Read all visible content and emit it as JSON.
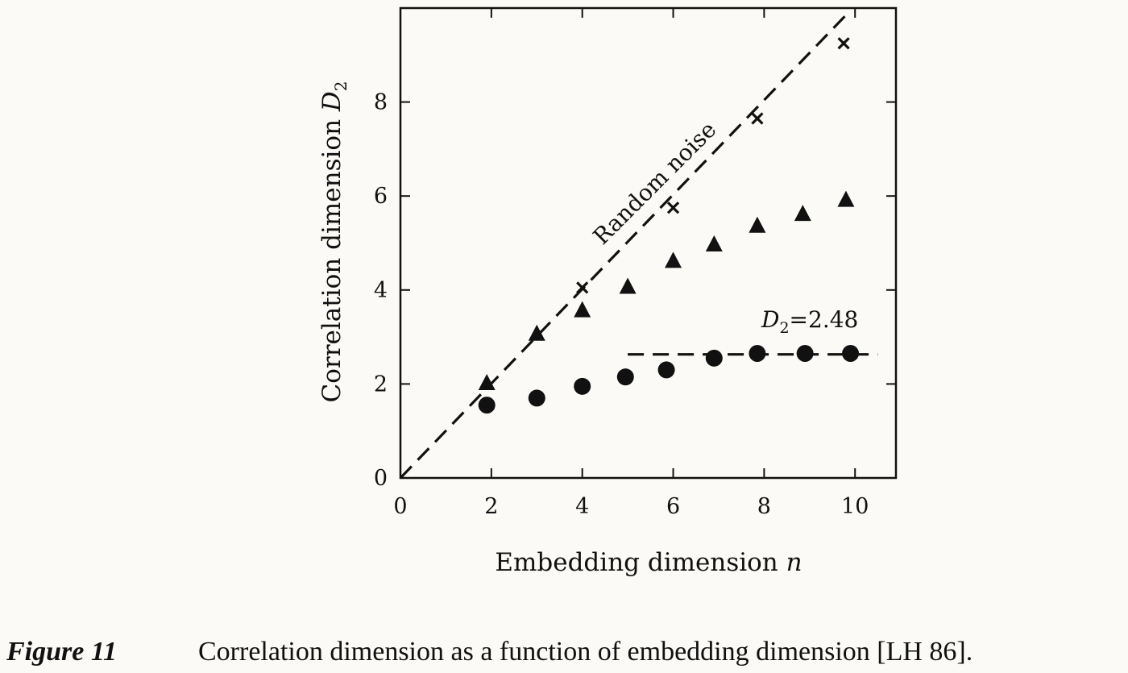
{
  "chart_data": {
    "type": "scatter",
    "xlabel": "Embedding dimension",
    "xlabel_var": "n",
    "ylabel": "Correlation dimension",
    "ylabel_var": "D",
    "ylabel_sub": "2",
    "xlim": [
      0,
      10.9
    ],
    "ylim": [
      0,
      10
    ],
    "xticks": [
      0,
      2,
      4,
      6,
      8,
      10
    ],
    "yticks": [
      0,
      2,
      4,
      6,
      8
    ],
    "grid": false,
    "series": [
      {
        "marker": "x",
        "x": [
          4,
          6,
          7.85,
          9.75
        ],
        "y": [
          4.05,
          5.75,
          7.65,
          9.25
        ]
      },
      {
        "marker": "triangle",
        "x": [
          1.9,
          3,
          4,
          5,
          6,
          6.9,
          7.85,
          8.85,
          9.8
        ],
        "y": [
          2.0,
          3.05,
          3.55,
          4.05,
          4.6,
          4.95,
          5.35,
          5.6,
          5.9
        ]
      },
      {
        "marker": "circle",
        "x": [
          1.9,
          3,
          4,
          4.95,
          5.85,
          6.9,
          7.85,
          8.9,
          9.9
        ],
        "y": [
          1.55,
          1.7,
          1.95,
          2.15,
          2.3,
          2.55,
          2.65,
          2.65,
          2.65
        ]
      }
    ],
    "lines": [
      {
        "name": "random-noise-line",
        "x": [
          0,
          9.85
        ],
        "y": [
          0,
          9.9
        ],
        "style": "dashed"
      },
      {
        "name": "saturation-line",
        "x": [
          5,
          10.5
        ],
        "y": [
          2.63,
          2.63
        ],
        "style": "dashed"
      }
    ],
    "annotations": {
      "noise_label": "Random noise",
      "d2_label_var": "D",
      "d2_label_sub": "2",
      "d2_label_value": "=2.48"
    }
  },
  "caption": {
    "label": "Figure 11",
    "text": "Correlation dimension as a function of embedding dimension [LH 86]."
  }
}
